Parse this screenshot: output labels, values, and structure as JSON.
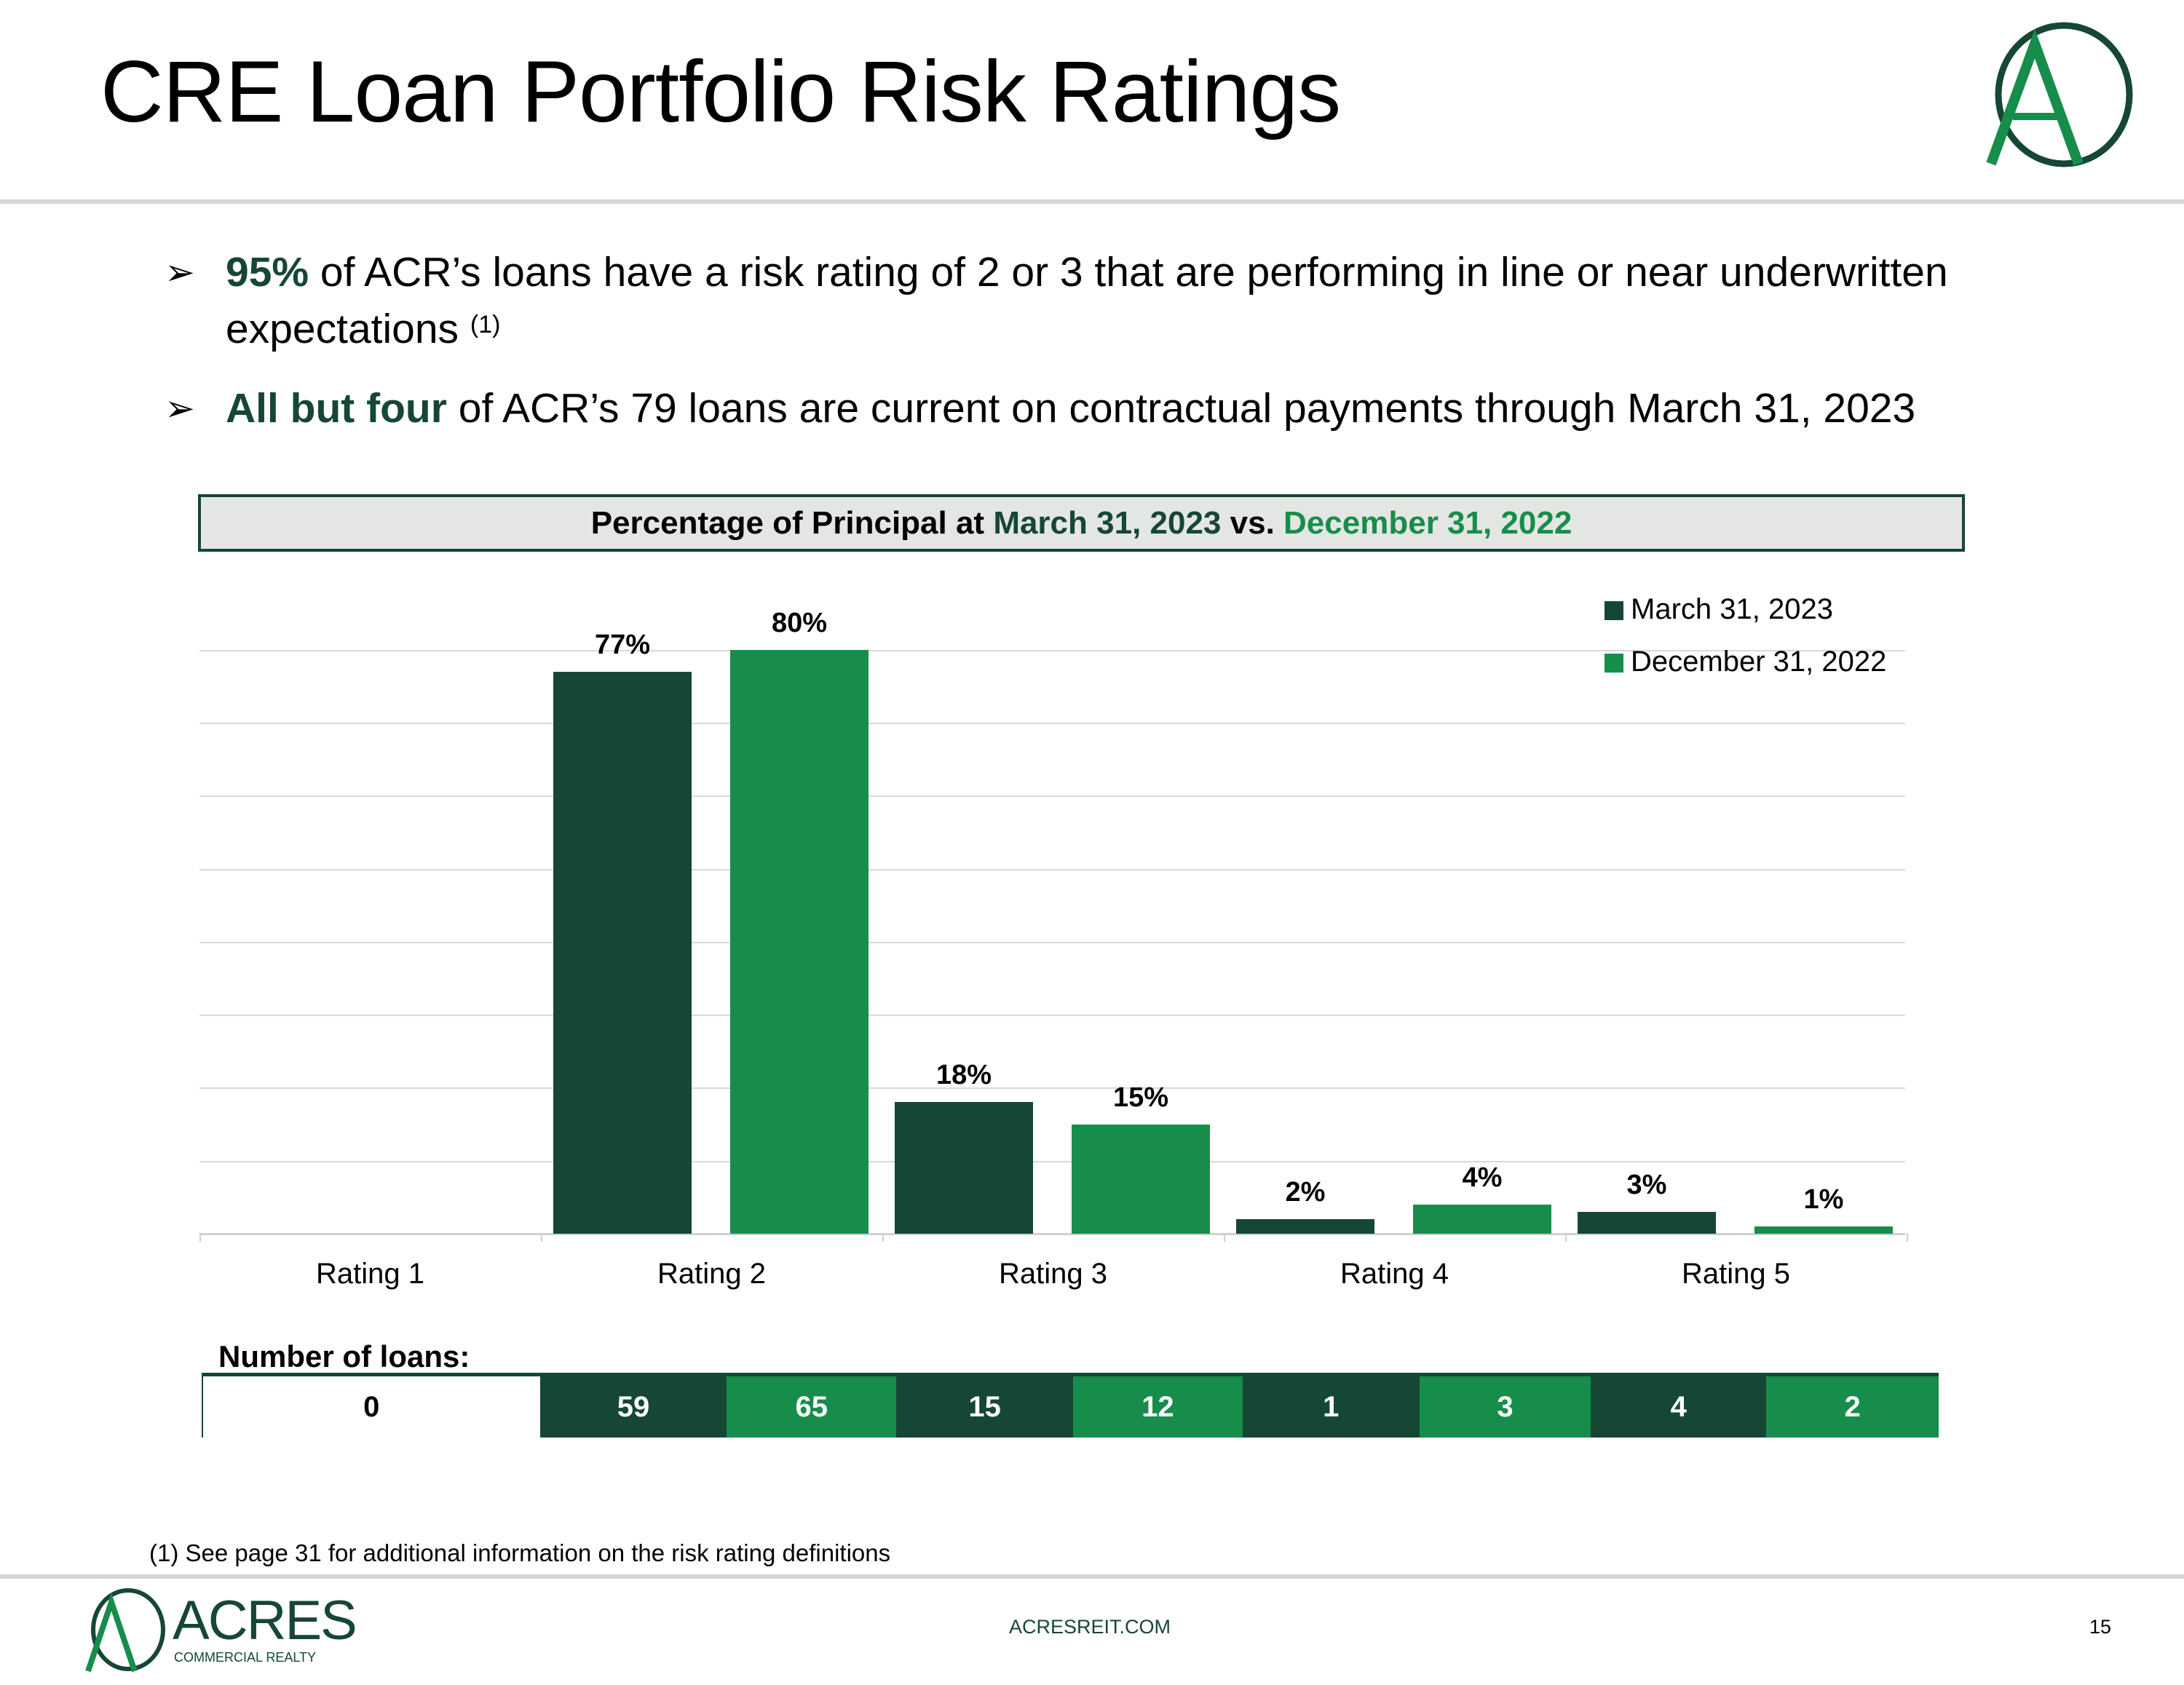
{
  "title": "CRE Loan Portfolio Risk Ratings",
  "bullets": [
    {
      "highlight": "95%",
      "text": " of ACR’s loans have a risk rating of 2 or 3 that are performing in line or near underwritten",
      "text2": "expectations ",
      "sup": "(1)"
    },
    {
      "highlight": "All but four",
      "text": " of ACR’s 79 loans are current on contractual payments through March 31, 2023"
    }
  ],
  "colors": {
    "dark_green": "#154734",
    "green": "#178d4b"
  },
  "chart_header": {
    "prefix": "Percentage of Principal at ",
    "date1": "March 31, 2023",
    "mid": " vs. ",
    "date2": "December 31, 2022"
  },
  "chart_data": {
    "type": "bar",
    "title": "Percentage of Principal at March 31, 2023 vs. December 31, 2022",
    "categories": [
      "Rating 1",
      "Rating 2",
      "Rating 3",
      "Rating 4",
      "Rating 5"
    ],
    "series": [
      {
        "name": "March 31, 2023",
        "values": [
          0,
          77,
          18,
          2,
          3
        ],
        "labels": [
          "",
          "77%",
          "18%",
          "2%",
          "3%"
        ],
        "color": "#154734"
      },
      {
        "name": "December 31, 2022",
        "values": [
          0,
          80,
          15,
          4,
          1
        ],
        "labels": [
          "",
          "80%",
          "15%",
          "4%",
          "1%"
        ],
        "color": "#178d4b"
      }
    ],
    "ylim": [
      0,
      80
    ],
    "gridlines": [
      10,
      20,
      30,
      40,
      50,
      60,
      70,
      80
    ],
    "legend": "top-right"
  },
  "loans": {
    "label": "Number of loans:",
    "cells": [
      {
        "value": "0",
        "series": "none"
      },
      {
        "value": "59",
        "series": "March 31, 2023"
      },
      {
        "value": "65",
        "series": "December 31, 2022"
      },
      {
        "value": "15",
        "series": "March 31, 2023"
      },
      {
        "value": "12",
        "series": "December 31, 2022"
      },
      {
        "value": "1",
        "series": "March 31, 2023"
      },
      {
        "value": "3",
        "series": "December 31, 2022"
      },
      {
        "value": "4",
        "series": "March 31, 2023"
      },
      {
        "value": "2",
        "series": "December 31, 2022"
      }
    ]
  },
  "footnote": "(1) See page 31 for additional information on the risk rating definitions",
  "footer": {
    "logo_name": "ACRES",
    "logo_sub": "COMMERCIAL REALTY",
    "url": "ACRESREIT.COM",
    "page": "15"
  }
}
